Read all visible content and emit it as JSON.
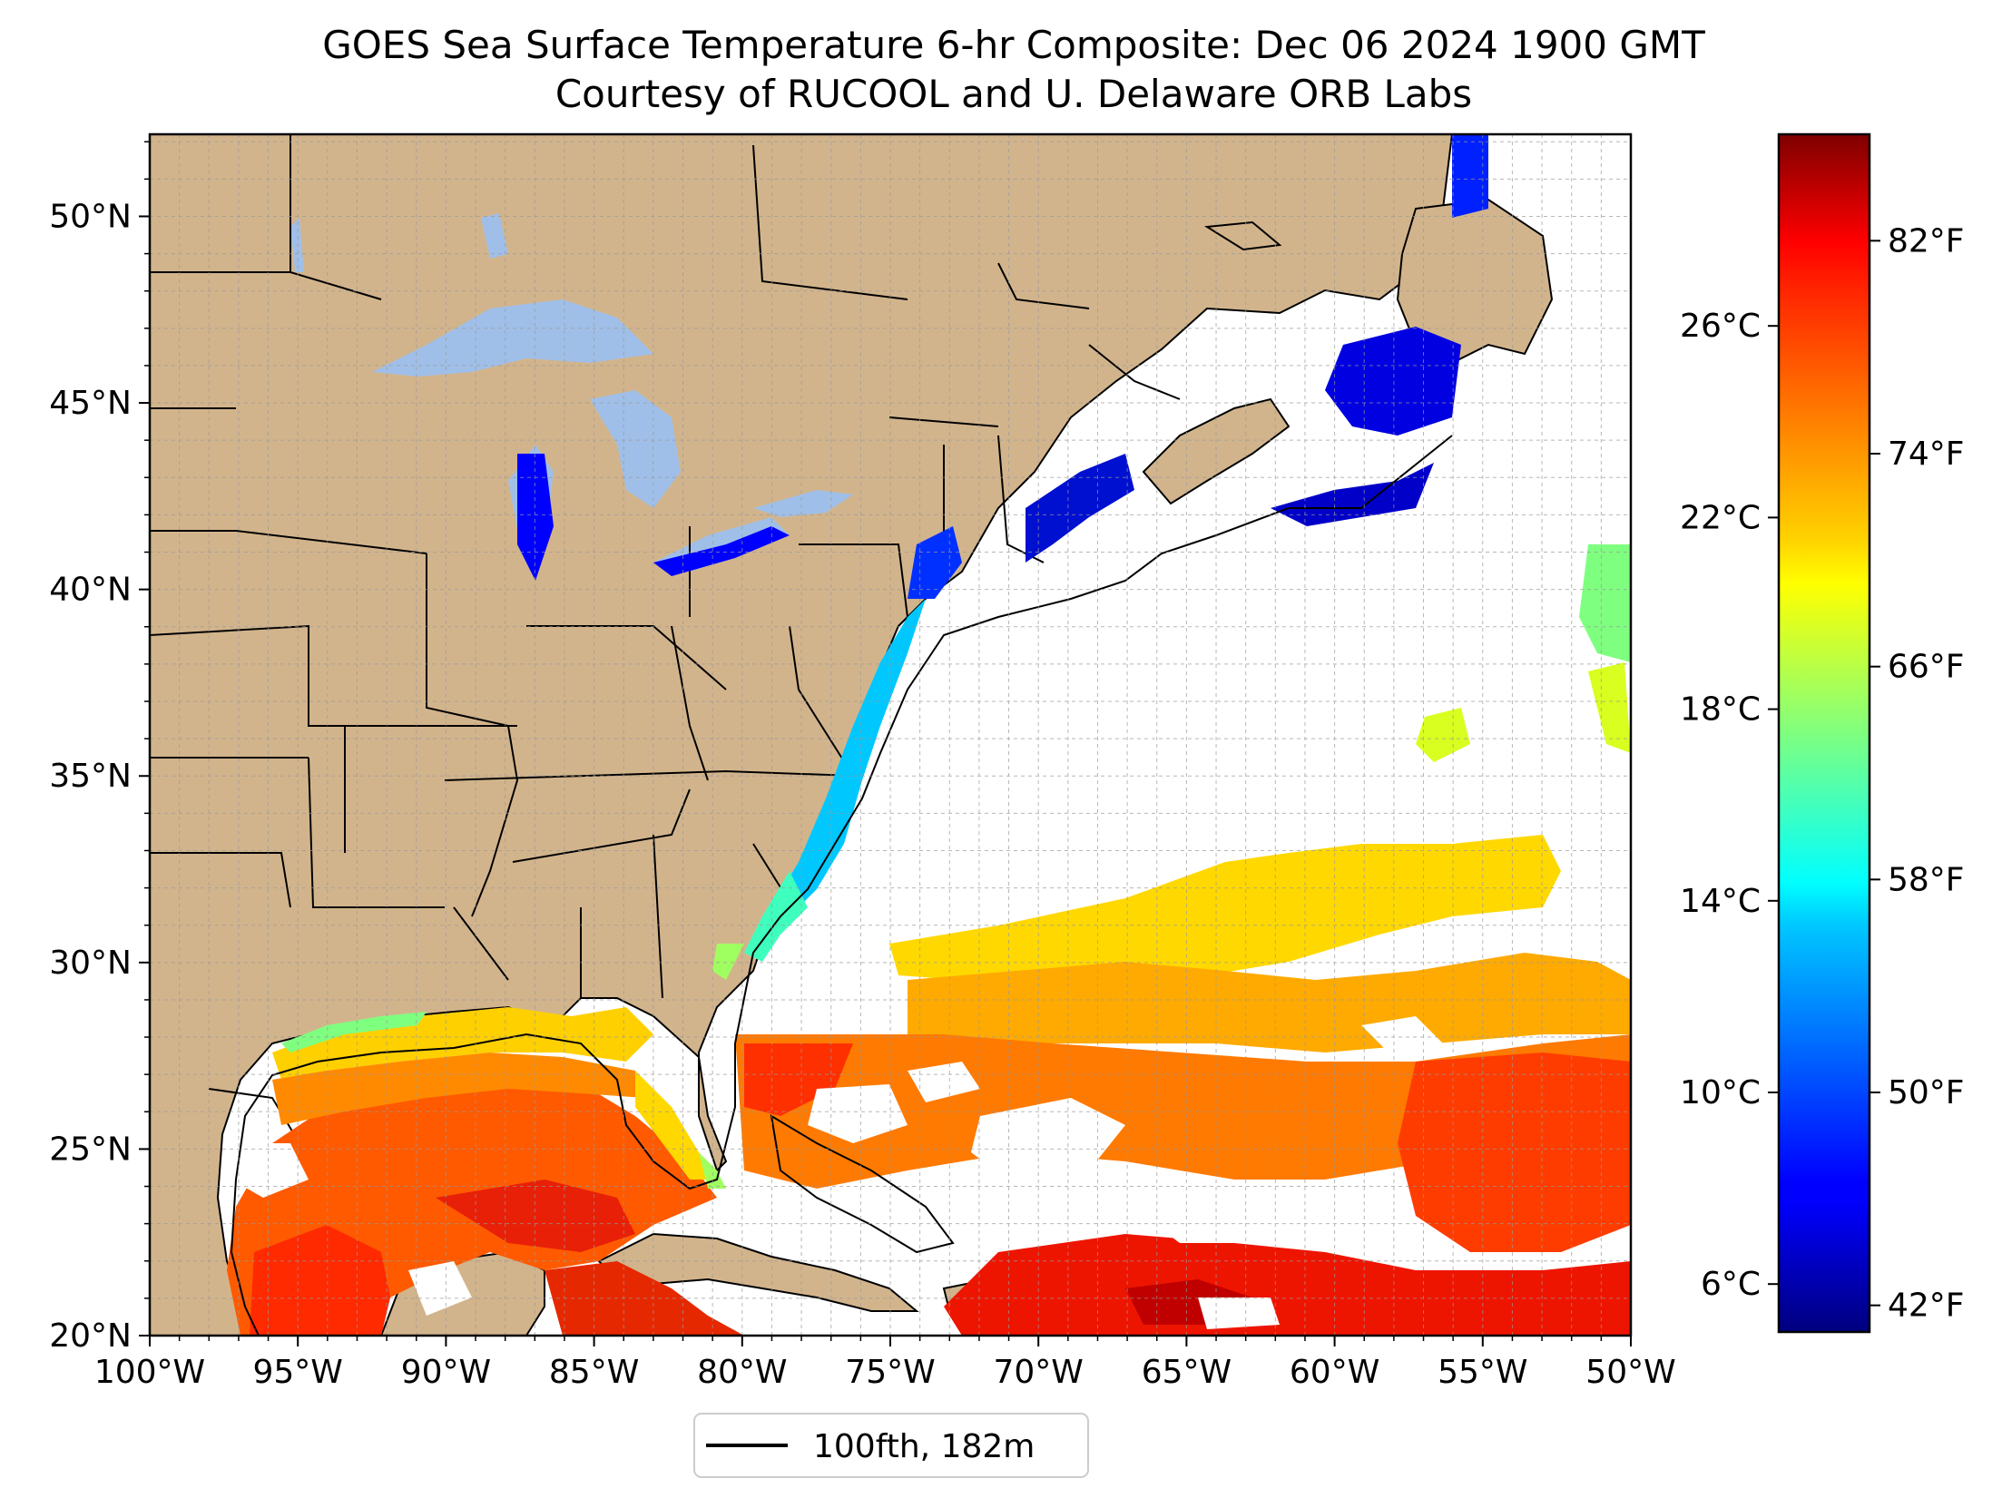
{
  "title": {
    "line1": "GOES Sea Surface Temperature 6-hr Composite: Dec 06 2024 1900 GMT",
    "line2": "Courtesy of RUCOOL and U. Delaware ORB Labs"
  },
  "map": {
    "lon_range": [
      -100,
      -50
    ],
    "lat_range": [
      20,
      52.2
    ],
    "lon_ticks": [
      "100°W",
      "95°W",
      "90°W",
      "85°W",
      "80°W",
      "75°W",
      "70°W",
      "65°W",
      "60°W",
      "55°W",
      "50°W"
    ],
    "lat_ticks": [
      "20°N",
      "25°N",
      "30°N",
      "35°N",
      "40°N",
      "45°N",
      "50°N"
    ],
    "land_color": "#d2b48c",
    "lake_color": "#a0bfe8",
    "gridlines": true
  },
  "colorbar": {
    "cmap": "jet",
    "range_c": [
      5,
      30
    ],
    "celsius_ticks": [
      "6°C",
      "10°C",
      "14°C",
      "18°C",
      "22°C",
      "26°C"
    ],
    "fahrenheit_ticks": [
      "42°F",
      "50°F",
      "58°F",
      "66°F",
      "74°F",
      "82°F"
    ]
  },
  "legend": {
    "label": "100fth, 182m"
  }
}
